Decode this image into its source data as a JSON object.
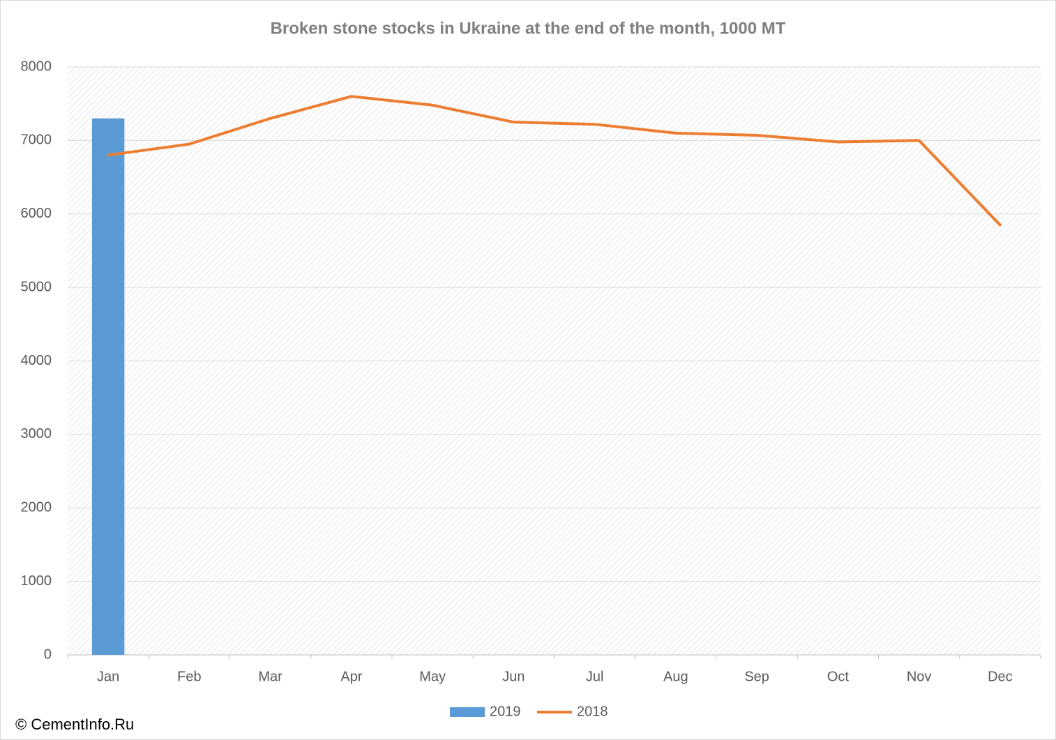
{
  "chart_data": {
    "type": "combo",
    "title": "Broken stone stocks in Ukraine at the end of the month, 1000 MT",
    "categories": [
      "Jan",
      "Feb",
      "Mar",
      "Apr",
      "May",
      "Jun",
      "Jul",
      "Aug",
      "Sep",
      "Oct",
      "Nov",
      "Dec"
    ],
    "series": [
      {
        "name": "2019",
        "type": "bar",
        "color": "#5b9bd5",
        "values": [
          7300,
          null,
          null,
          null,
          null,
          null,
          null,
          null,
          null,
          null,
          null,
          null
        ]
      },
      {
        "name": "2018",
        "type": "line",
        "color": "#ed7d31",
        "values": [
          6800,
          6950,
          7300,
          7600,
          7480,
          7250,
          7220,
          7100,
          7070,
          6980,
          7000,
          5850
        ]
      }
    ],
    "ylim": [
      0,
      8000
    ],
    "yticks": [
      0,
      1000,
      2000,
      3000,
      4000,
      5000,
      6000,
      7000,
      8000
    ],
    "grid": true,
    "legend": "bottom",
    "source": "© CementInfo.Ru"
  }
}
